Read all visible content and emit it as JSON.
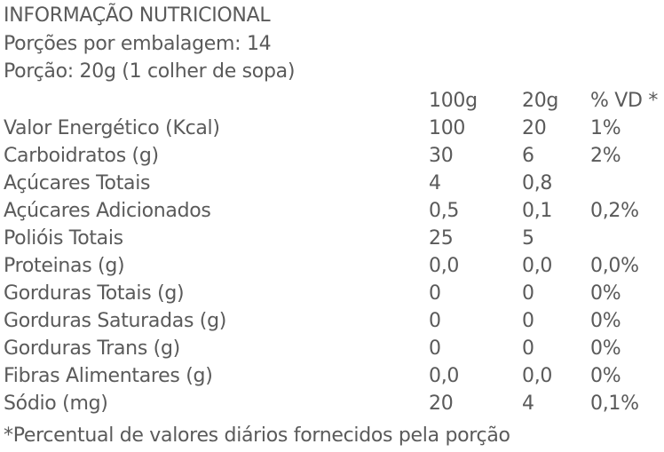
{
  "header": {
    "title": "INFORMAÇÃO NUTRICIONAL",
    "servings": "Porções por embalagem: 14",
    "portion": "Porção: 20g (1 colher de sopa)"
  },
  "table": {
    "columns": [
      "100g",
      "20g",
      "% VD *"
    ],
    "rows": [
      {
        "label": "Valor Energético (Kcal)",
        "values": [
          "100",
          "20",
          "1%"
        ]
      },
      {
        "label": "Carboidratos (g)",
        "values": [
          "30",
          "6",
          "2%"
        ]
      },
      {
        "label": "Açúcares Totais",
        "values": [
          "4",
          "0,8"
        ]
      },
      {
        "label": "Açúcares Adicionados",
        "values": [
          "0,5",
          "0,1",
          "0,2%"
        ]
      },
      {
        "label": "Polióis Totais",
        "values": [
          "25",
          "5"
        ]
      },
      {
        "label": "Proteinas (g)",
        "values": [
          "0,0",
          "0,0",
          "0,0%"
        ]
      },
      {
        "label": "Gorduras Totais (g)",
        "values": [
          "0",
          "0",
          "0%"
        ]
      },
      {
        "label": "Gorduras Saturadas (g)",
        "values": [
          "0",
          "0",
          "0%"
        ]
      },
      {
        "label": "Gorduras  Trans (g)",
        "values": [
          "0",
          "0",
          "0%"
        ]
      },
      {
        "label": "Fibras Alimentares (g)",
        "values": [
          "0,0",
          "0,0",
          "0%"
        ]
      },
      {
        "label": "Sódio (mg)",
        "values": [
          "20",
          "4",
          "0,1%"
        ]
      }
    ]
  },
  "footnote": "*Percentual de valores diários fornecidos pela porção"
}
